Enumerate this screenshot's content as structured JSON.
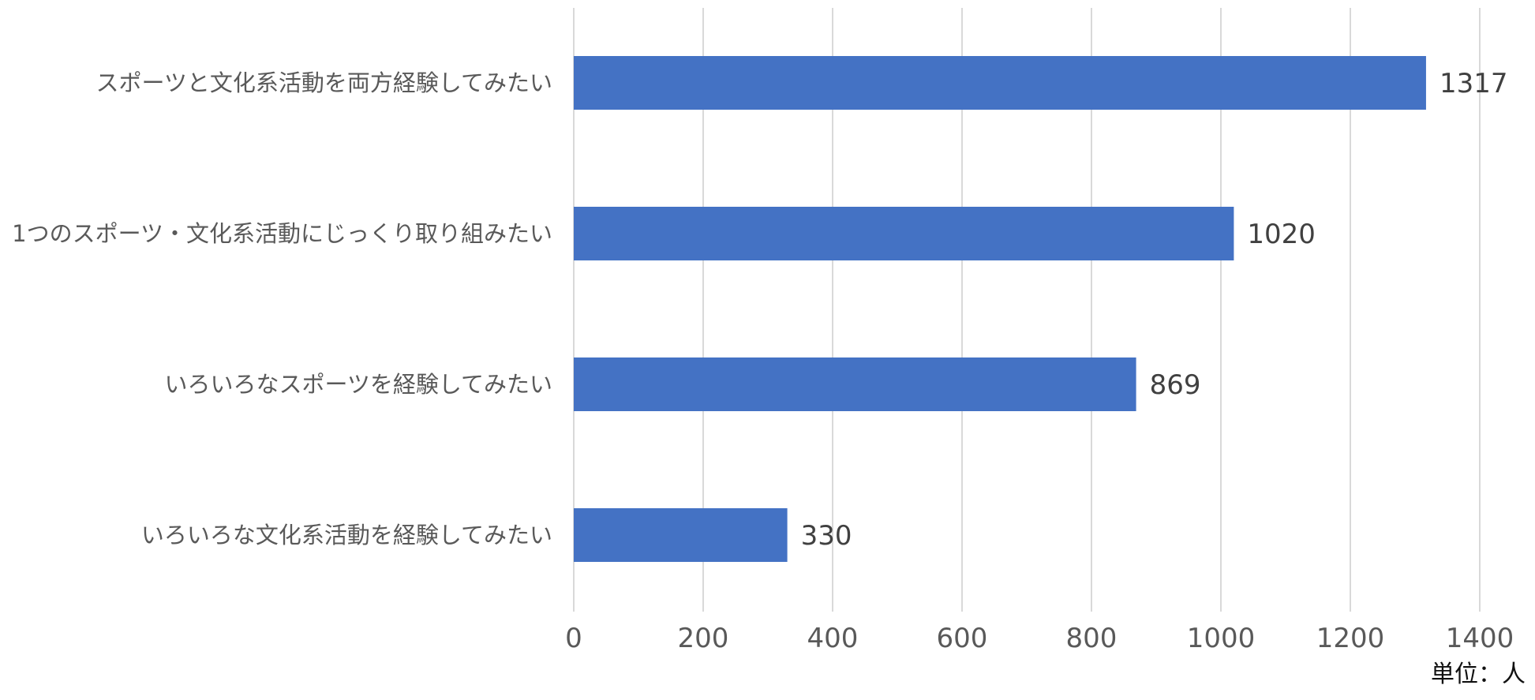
{
  "unit_note": "単位：人",
  "colors": {
    "bar": "#4472C4",
    "grid": "#D9D9D9",
    "tick_text": "#595959",
    "category_text": "#595959",
    "value_text": "#404040"
  },
  "chart_data": {
    "type": "bar",
    "orientation": "horizontal",
    "categories": [
      "スポーツと文化系活動を両方経験してみたい",
      "1つのスポーツ・文化系活動にじっくり取り組みたい",
      "いろいろなスポーツを経験してみたい",
      "いろいろな文化系活動を経験してみたい"
    ],
    "values": [
      1317,
      1020,
      869,
      330
    ],
    "xlim": [
      0,
      1400
    ],
    "xticks": [
      0,
      200,
      400,
      600,
      800,
      1000,
      1200,
      1400
    ],
    "grid": true,
    "data_labels": true,
    "legend": "none"
  }
}
